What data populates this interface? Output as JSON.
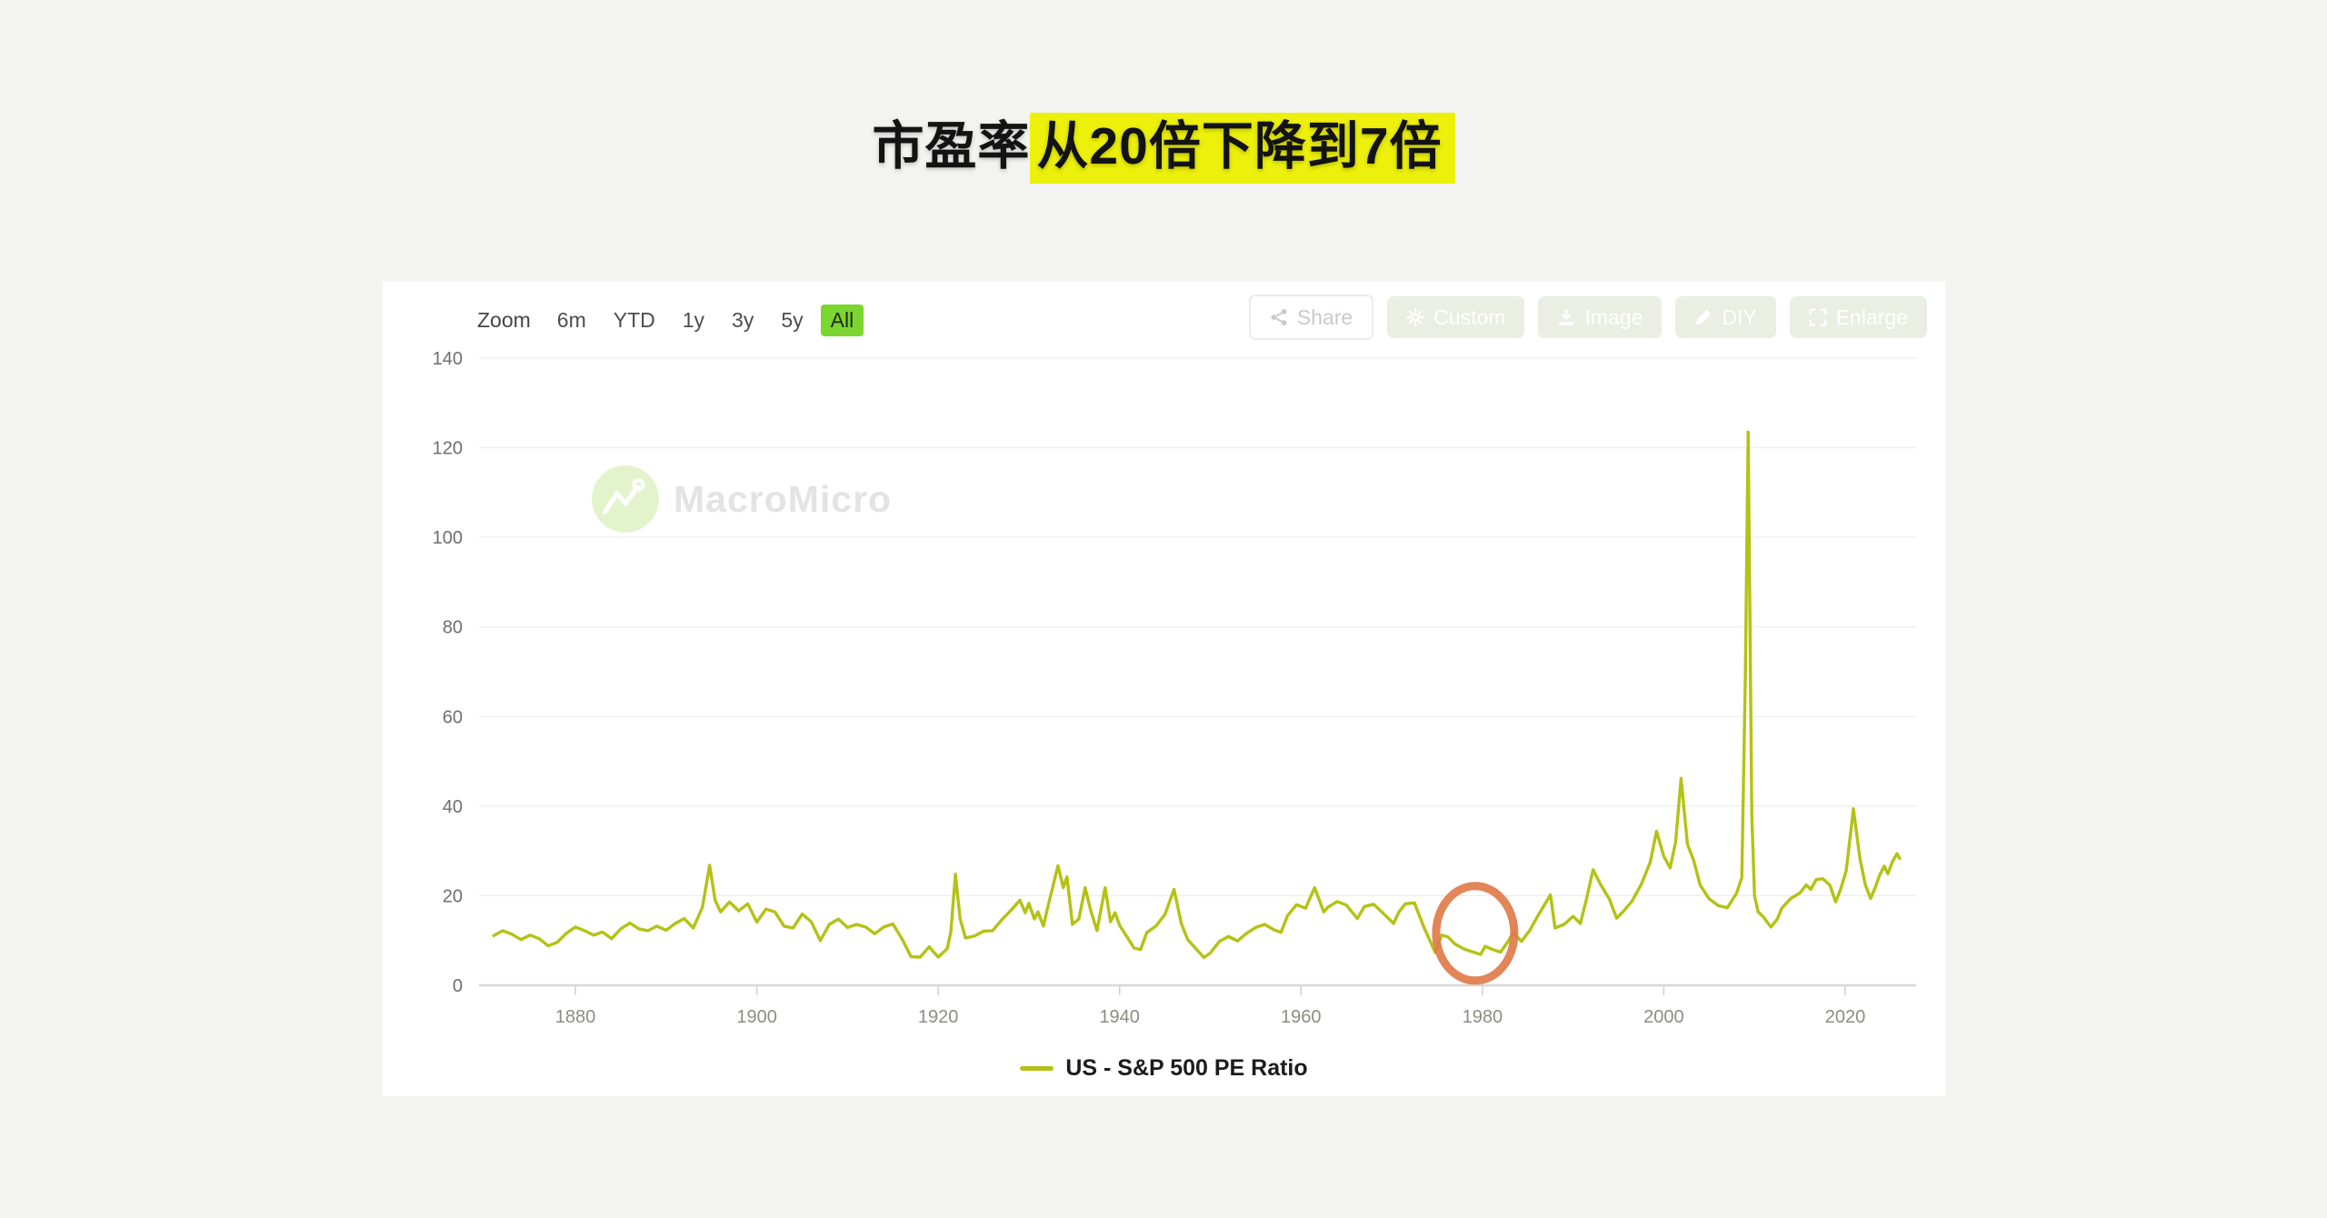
{
  "title": {
    "prefix": "市盈率",
    "highlight": "从20倍下降到7倍"
  },
  "colors": {
    "page_bg": "#f3f3f2",
    "card_bg": "#ffffff",
    "title_highlight_bg": "#ecf00a",
    "line": "#b4c214",
    "active_range_bg": "#7cd62f",
    "annotation_circle": "#df7b4b",
    "grid": "#e9e9e9",
    "axis": "#d8d8d8"
  },
  "chart_card": {
    "zoom_bar": {
      "label": "Zoom",
      "ranges": [
        "6m",
        "YTD",
        "1y",
        "3y",
        "5y",
        "All"
      ],
      "active": "All"
    },
    "action_buttons": [
      {
        "label": "Share",
        "icon": "share-icon"
      },
      {
        "label": "Custom",
        "icon": "gear-icon"
      },
      {
        "label": "Image",
        "icon": "download-icon"
      },
      {
        "label": "DIY",
        "icon": "pencil-icon"
      },
      {
        "label": "Enlarge",
        "icon": "enlarge-icon"
      }
    ],
    "watermark": {
      "text": "MacroMicro"
    },
    "legend": {
      "label": "US - S&P 500 PE Ratio"
    }
  },
  "chart_data": {
    "type": "line",
    "title": "US - S&P 500 PE Ratio",
    "xlabel": "",
    "ylabel": "",
    "x_ticks": [
      1880,
      1900,
      1920,
      1940,
      1960,
      1980,
      2000,
      2020
    ],
    "y_ticks": [
      0,
      20,
      40,
      60,
      80,
      100,
      120,
      140
    ],
    "x_range": [
      1871,
      2027.5
    ],
    "ylim": [
      0,
      140
    ],
    "grid": "horizontal",
    "legend_position": "bottom",
    "annotation": {
      "shape": "ellipse",
      "x_year": 1979.2,
      "y_value": 11.6,
      "note": "PE low ~7x around 1977-1982"
    },
    "series": [
      {
        "name": "US - S&P 500 PE Ratio",
        "points": [
          [
            1871,
            11.1
          ],
          [
            1872,
            12.2
          ],
          [
            1873,
            11.4
          ],
          [
            1874,
            10.2
          ],
          [
            1875,
            11.2
          ],
          [
            1876,
            10.4
          ],
          [
            1877,
            8.8
          ],
          [
            1878,
            9.6
          ],
          [
            1879,
            11.6
          ],
          [
            1880,
            13.0
          ],
          [
            1881,
            12.2
          ],
          [
            1882,
            11.2
          ],
          [
            1883,
            11.9
          ],
          [
            1884,
            10.4
          ],
          [
            1885,
            12.6
          ],
          [
            1886,
            13.9
          ],
          [
            1887,
            12.6
          ],
          [
            1888,
            12.2
          ],
          [
            1889,
            13.2
          ],
          [
            1890,
            12.3
          ],
          [
            1891,
            13.8
          ],
          [
            1892,
            14.9
          ],
          [
            1893,
            12.8
          ],
          [
            1894,
            17.4
          ],
          [
            1894.8,
            26.8
          ],
          [
            1895.4,
            19.0
          ],
          [
            1896,
            16.4
          ],
          [
            1897,
            18.6
          ],
          [
            1898,
            16.6
          ],
          [
            1899,
            18.2
          ],
          [
            1900,
            14.1
          ],
          [
            1901,
            17.0
          ],
          [
            1902,
            16.4
          ],
          [
            1903,
            13.2
          ],
          [
            1904,
            12.8
          ],
          [
            1905,
            15.9
          ],
          [
            1906,
            14.2
          ],
          [
            1907,
            10.0
          ],
          [
            1908,
            13.6
          ],
          [
            1909,
            14.8
          ],
          [
            1910,
            12.9
          ],
          [
            1911,
            13.6
          ],
          [
            1912,
            13.0
          ],
          [
            1913,
            11.5
          ],
          [
            1914,
            13.0
          ],
          [
            1915,
            13.7
          ],
          [
            1916,
            10.4
          ],
          [
            1917,
            6.4
          ],
          [
            1918,
            6.3
          ],
          [
            1919,
            8.6
          ],
          [
            1920,
            6.3
          ],
          [
            1921,
            8.2
          ],
          [
            1921.4,
            12.0
          ],
          [
            1921.9,
            24.8
          ],
          [
            1922.4,
            15.0
          ],
          [
            1923,
            10.6
          ],
          [
            1924,
            11.0
          ],
          [
            1925,
            12.1
          ],
          [
            1926,
            12.2
          ],
          [
            1927,
            14.6
          ],
          [
            1928,
            16.7
          ],
          [
            1929,
            19.0
          ],
          [
            1929.6,
            16.2
          ],
          [
            1930,
            18.3
          ],
          [
            1930.6,
            14.8
          ],
          [
            1931,
            16.4
          ],
          [
            1931.6,
            13.2
          ],
          [
            1932,
            16.8
          ],
          [
            1933.2,
            26.7
          ],
          [
            1933.8,
            21.8
          ],
          [
            1934.2,
            24.2
          ],
          [
            1934.8,
            13.6
          ],
          [
            1935.5,
            14.8
          ],
          [
            1936.2,
            21.8
          ],
          [
            1936.8,
            16.8
          ],
          [
            1937.5,
            12.2
          ],
          [
            1938.4,
            21.8
          ],
          [
            1939,
            14.2
          ],
          [
            1939.5,
            16.2
          ],
          [
            1940,
            13.4
          ],
          [
            1941,
            10.2
          ],
          [
            1941.6,
            8.3
          ],
          [
            1942.3,
            8.0
          ],
          [
            1943,
            11.8
          ],
          [
            1944,
            13.2
          ],
          [
            1945,
            15.8
          ],
          [
            1946,
            21.4
          ],
          [
            1946.8,
            13.8
          ],
          [
            1947.5,
            10.2
          ],
          [
            1948.5,
            8.0
          ],
          [
            1949.3,
            6.2
          ],
          [
            1950,
            7.2
          ],
          [
            1951,
            9.8
          ],
          [
            1952,
            10.9
          ],
          [
            1953,
            9.9
          ],
          [
            1954,
            11.6
          ],
          [
            1955,
            12.9
          ],
          [
            1956,
            13.6
          ],
          [
            1957,
            12.4
          ],
          [
            1957.8,
            11.8
          ],
          [
            1958.5,
            15.5
          ],
          [
            1959.5,
            18.0
          ],
          [
            1960.5,
            17.2
          ],
          [
            1961.5,
            21.8
          ],
          [
            1962.5,
            16.4
          ],
          [
            1963,
            17.5
          ],
          [
            1964,
            18.7
          ],
          [
            1965,
            17.9
          ],
          [
            1966.2,
            14.9
          ],
          [
            1967,
            17.6
          ],
          [
            1968,
            18.1
          ],
          [
            1969,
            16.2
          ],
          [
            1970.2,
            13.8
          ],
          [
            1970.8,
            16.4
          ],
          [
            1971.5,
            18.2
          ],
          [
            1972.5,
            18.4
          ],
          [
            1973.5,
            13.2
          ],
          [
            1974.8,
            7.3
          ],
          [
            1975.5,
            11.2
          ],
          [
            1976.2,
            10.8
          ],
          [
            1977,
            9.2
          ],
          [
            1978,
            8.1
          ],
          [
            1979,
            7.4
          ],
          [
            1979.8,
            6.9
          ],
          [
            1980.3,
            8.7
          ],
          [
            1981,
            8.1
          ],
          [
            1982,
            7.4
          ],
          [
            1982.8,
            9.7
          ],
          [
            1983.4,
            11.8
          ],
          [
            1984.3,
            9.8
          ],
          [
            1985.2,
            12.2
          ],
          [
            1986.2,
            15.8
          ],
          [
            1987.5,
            20.2
          ],
          [
            1988,
            12.8
          ],
          [
            1989,
            13.6
          ],
          [
            1990,
            15.4
          ],
          [
            1990.8,
            13.8
          ],
          [
            1991.5,
            19.5
          ],
          [
            1992.2,
            25.8
          ],
          [
            1993,
            22.6
          ],
          [
            1994,
            19.2
          ],
          [
            1994.8,
            15.0
          ],
          [
            1995.5,
            16.4
          ],
          [
            1996.5,
            18.8
          ],
          [
            1997.5,
            22.5
          ],
          [
            1998.5,
            27.5
          ],
          [
            1999.2,
            34.4
          ],
          [
            2000,
            28.8
          ],
          [
            2000.7,
            26.2
          ],
          [
            2001.3,
            32.0
          ],
          [
            2001.9,
            46.2
          ],
          [
            2002.6,
            31.5
          ],
          [
            2003.3,
            27.8
          ],
          [
            2004,
            22.4
          ],
          [
            2005,
            19.3
          ],
          [
            2006,
            17.8
          ],
          [
            2007,
            17.3
          ],
          [
            2008,
            20.5
          ],
          [
            2008.6,
            24.0
          ],
          [
            2009.0,
            70.0
          ],
          [
            2009.3,
            123.5
          ],
          [
            2009.7,
            38.0
          ],
          [
            2010,
            20.0
          ],
          [
            2010.4,
            16.4
          ],
          [
            2011,
            15.2
          ],
          [
            2011.8,
            13.0
          ],
          [
            2012.5,
            14.8
          ],
          [
            2013,
            17.2
          ],
          [
            2014,
            19.4
          ],
          [
            2015,
            20.6
          ],
          [
            2015.7,
            22.4
          ],
          [
            2016.2,
            21.4
          ],
          [
            2016.8,
            23.6
          ],
          [
            2017.5,
            23.8
          ],
          [
            2018.3,
            22.4
          ],
          [
            2018.95,
            18.6
          ],
          [
            2019.5,
            21.5
          ],
          [
            2020.1,
            25.5
          ],
          [
            2020.9,
            39.4
          ],
          [
            2021.6,
            28.5
          ],
          [
            2022.2,
            22.5
          ],
          [
            2022.8,
            19.4
          ],
          [
            2023.3,
            21.8
          ],
          [
            2023.8,
            24.6
          ],
          [
            2024.3,
            26.6
          ],
          [
            2024.7,
            24.9
          ],
          [
            2025.2,
            27.6
          ],
          [
            2025.7,
            29.4
          ],
          [
            2026,
            28.3
          ]
        ]
      }
    ]
  }
}
